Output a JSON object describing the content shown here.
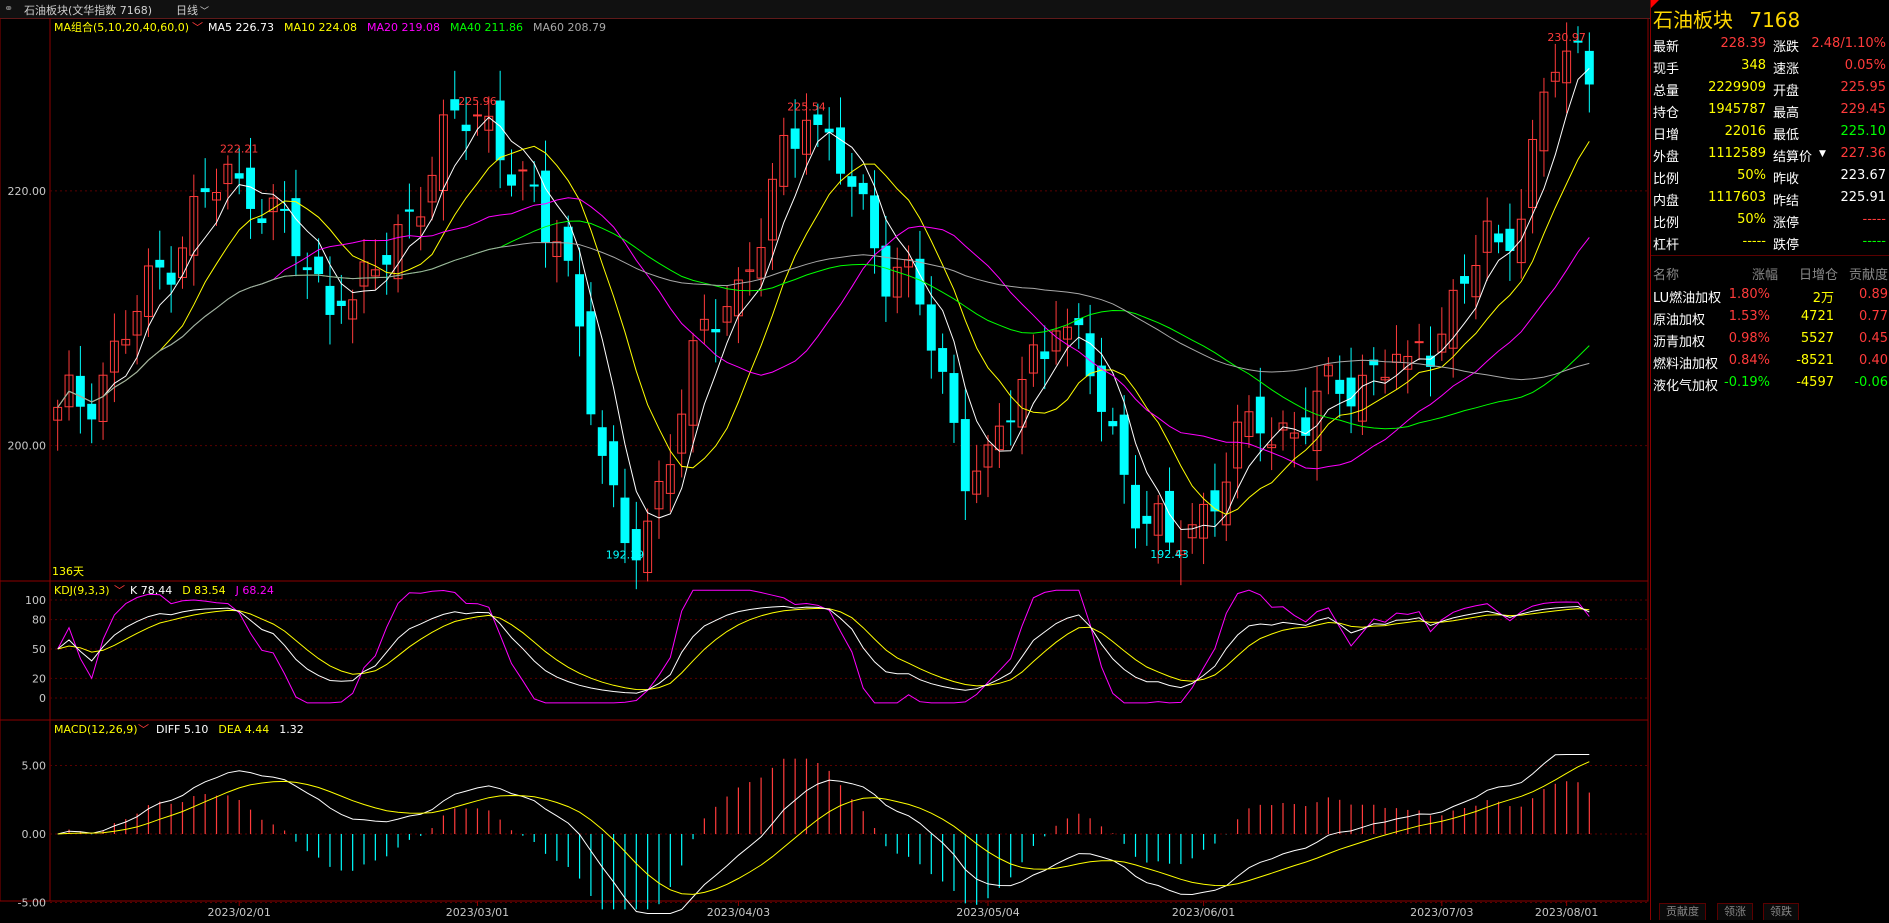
{
  "topbar": {
    "title": "石油板块(文华指数 7168)",
    "period": "日线",
    "period_icon": "chevron-down-icon"
  },
  "colors": {
    "up": "#ff3b3b",
    "down": "#00ffff",
    "ma5": "#ffffff",
    "ma10": "#ffff00",
    "ma20": "#ff00ff",
    "ma40": "#00ff00",
    "ma60": "#a8a8a8",
    "grid": "#8b0000"
  },
  "main_panel": {
    "indicator_label": "MA组合(5,10,20,40,60,0)",
    "legend": [
      {
        "name": "MA5",
        "value": "226.73",
        "color": "#ffffff"
      },
      {
        "name": "MA10",
        "value": "224.08",
        "color": "#ffff00"
      },
      {
        "name": "MA20",
        "value": "219.08",
        "color": "#ff00ff"
      },
      {
        "name": "MA40",
        "value": "211.86",
        "color": "#00ff00"
      },
      {
        "name": "MA60",
        "value": "208.79",
        "color": "#a8a8a8"
      }
    ],
    "y_ticks": [
      "220.00",
      "200.00"
    ],
    "days_label": "136天",
    "annotations": [
      "222.21",
      "225.96",
      "225.54",
      "230.97",
      "192.39",
      "192.43"
    ]
  },
  "kdj_panel": {
    "indicator_label": "KDJ(9,3,3)",
    "legend": [
      {
        "name": "K",
        "value": "78.44",
        "color": "#ffffff"
      },
      {
        "name": "D",
        "value": "83.54",
        "color": "#ffff00"
      },
      {
        "name": "J",
        "value": "68.24",
        "color": "#ff00ff"
      }
    ],
    "y_ticks": [
      "100",
      "80",
      "50",
      "20",
      "0"
    ]
  },
  "macd_panel": {
    "indicator_label": "MACD(12,26,9)",
    "legend": [
      {
        "name": "DIFF",
        "value": "5.10",
        "color": "#ffffff"
      },
      {
        "name": "DEA",
        "value": "4.44",
        "color": "#ffff00"
      },
      {
        "name": "",
        "value": "1.32",
        "color": "#ffffff"
      }
    ],
    "y_ticks": [
      "5.00",
      "0.00",
      "-5.00"
    ]
  },
  "x_axis": [
    "2023/02/01",
    "2023/03/01",
    "2023/04/03",
    "2023/05/04",
    "2023/06/01",
    "2023/07/03",
    "2023/08/01"
  ],
  "chart_data": {
    "type": "candlestick",
    "title": "",
    "main_ylim": [
      192,
      232
    ],
    "kdj_ylim": [
      0,
      100
    ],
    "macd_ylim": [
      -5,
      5
    ],
    "x": [
      "2023/02/01",
      "2023/03/01",
      "2023/04/03",
      "2023/05/04",
      "2023/06/01",
      "2023/07/03",
      "2023/08/01"
    ],
    "close_path_anchors": [
      {
        "x": "start",
        "y": 203
      },
      {
        "x": "2023/02/01",
        "y": 221
      },
      {
        "x": "2023/02/10",
        "y": 211
      },
      {
        "x": "2023/03/01",
        "y": 225.96
      },
      {
        "x": "2023/03/10",
        "y": 216
      },
      {
        "x": "2023/03/20",
        "y": 192.39
      },
      {
        "x": "2023/04/03",
        "y": 213
      },
      {
        "x": "2023/04/12",
        "y": 225.54
      },
      {
        "x": "2023/04/25",
        "y": 214
      },
      {
        "x": "2023/05/04",
        "y": 198
      },
      {
        "x": "2023/05/15",
        "y": 209
      },
      {
        "x": "2023/06/01",
        "y": 192.43
      },
      {
        "x": "2023/06/15",
        "y": 201
      },
      {
        "x": "2023/07/03",
        "y": 207
      },
      {
        "x": "2023/07/20",
        "y": 216
      },
      {
        "x": "2023/08/01",
        "y": 230.97
      },
      {
        "x": "end",
        "y": 228.39
      }
    ]
  },
  "quote": {
    "title": "石油板块",
    "code": "7168",
    "rows": [
      {
        "l1": "最新",
        "v1": "228.39",
        "c1": "#ff3b3b",
        "l2": "涨跌",
        "v2": "2.48/1.10%",
        "c2": "#ff3b3b"
      },
      {
        "l1": "现手",
        "v1": "348",
        "c1": "#ffff00",
        "l2": "速涨",
        "v2": "0.05%",
        "c2": "#ff3b3b"
      },
      {
        "l1": "总量",
        "v1": "2229909",
        "c1": "#ffff00",
        "l2": "开盘",
        "v2": "225.95",
        "c2": "#ff3b3b"
      },
      {
        "l1": "持仓",
        "v1": "1945787",
        "c1": "#ffff00",
        "l2": "最高",
        "v2": "229.45",
        "c2": "#ff3b3b"
      },
      {
        "l1": "日增",
        "v1": "22016",
        "c1": "#ffff00",
        "l2": "最低",
        "v2": "225.10",
        "c2": "#00ff00"
      },
      {
        "l1": "外盘",
        "v1": "1112589",
        "c1": "#ffff00",
        "l2": "结算价",
        "v2": "227.36",
        "c2": "#ff3b3b"
      },
      {
        "l1": "比例",
        "v1": "50%",
        "c1": "#ffff00",
        "l2": "昨收",
        "v2": "223.67",
        "c2": "#ffffff"
      },
      {
        "l1": "内盘",
        "v1": "1117603",
        "c1": "#ffff00",
        "l2": "昨结",
        "v2": "225.91",
        "c2": "#ffffff"
      },
      {
        "l1": "比例",
        "v1": "50%",
        "c1": "#ffff00",
        "l2": "涨停",
        "v2": "-----",
        "c2": "#ff3b3b"
      },
      {
        "l1": "杠杆",
        "v1": "-----",
        "c1": "#ffff00",
        "l2": "跌停",
        "v2": "-----",
        "c2": "#00ff00"
      }
    ]
  },
  "constituents": {
    "headers": [
      "名称",
      "涨幅",
      "日增仓",
      "贡献度"
    ],
    "rows": [
      {
        "name": "LU燃油加权",
        "chg": "1.80%",
        "oi": "2万",
        "contrib": "0.89",
        "color": "#ff3b3b"
      },
      {
        "name": "原油加权",
        "chg": "1.53%",
        "oi": "4721",
        "contrib": "0.77",
        "color": "#ff3b3b"
      },
      {
        "name": "沥青加权",
        "chg": "0.98%",
        "oi": "5527",
        "contrib": "0.45",
        "color": "#ff3b3b"
      },
      {
        "name": "燃料油加权",
        "chg": "0.84%",
        "oi": "-8521",
        "contrib": "0.40",
        "color": "#ff3b3b"
      },
      {
        "name": "液化气加权",
        "chg": "-0.19%",
        "oi": "-4597",
        "contrib": "-0.06",
        "color": "#00ff00"
      }
    ]
  },
  "bottom_tabs": [
    "贡献度",
    "领涨",
    "领跌"
  ]
}
